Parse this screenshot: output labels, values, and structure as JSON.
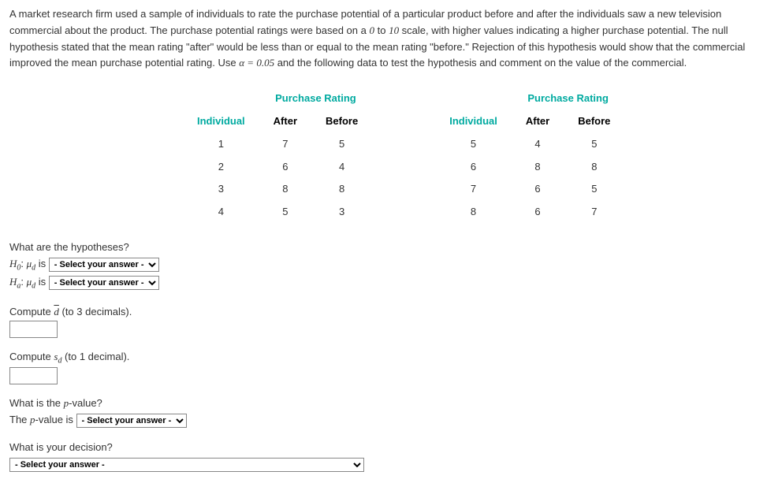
{
  "problem": {
    "p1_a": "A market research firm used a sample of individuals to rate the purchase potential of a particular product before and after the individuals saw a new television commercial about the product. The purchase potential ratings were based on a ",
    "scale_low": "0",
    "p1_b": " to ",
    "scale_high": "10",
    "p1_c": " scale, with higher values indicating a higher purchase potential. The null hypothesis stated that the mean rating \"after\" would be less than or equal to the mean rating \"before.\" Rejection of this hypothesis would show that the commercial improved the mean purchase potential rating. Use ",
    "alpha_sym": "α",
    "alpha_eq": " = ",
    "alpha_val": "0.05",
    "p1_d": " and the following data to test the hypothesis and comment on the value of the commercial."
  },
  "table": {
    "hdr_purchase": "Purchase Rating",
    "hdr_individual": "Individual",
    "hdr_after": "After",
    "hdr_before": "Before",
    "left": {
      "rows": [
        {
          "ind": "1",
          "after": "7",
          "before": "5"
        },
        {
          "ind": "2",
          "after": "6",
          "before": "4"
        },
        {
          "ind": "3",
          "after": "8",
          "before": "8"
        },
        {
          "ind": "4",
          "after": "5",
          "before": "3"
        }
      ]
    },
    "right": {
      "rows": [
        {
          "ind": "5",
          "after": "4",
          "before": "5"
        },
        {
          "ind": "6",
          "after": "8",
          "before": "8"
        },
        {
          "ind": "7",
          "after": "6",
          "before": "5"
        },
        {
          "ind": "8",
          "after": "6",
          "before": "7"
        }
      ]
    }
  },
  "q_hypotheses": "What are the hypotheses?",
  "h0_label_a": "H",
  "h0_label_b": "0",
  "h0_label_c": ": ",
  "mu": "μ",
  "mu_sub": "d",
  "is_txt": " is ",
  "ha_label_a": "H",
  "ha_label_b": "a",
  "ha_label_c": ": ",
  "select_placeholder": "- Select your answer -",
  "q_dbar_a": "Compute ",
  "q_dbar_sym": "d",
  "q_dbar_b": " (to 3 decimals).",
  "q_sd_a": "Compute ",
  "q_sd_sym": "s",
  "q_sd_sub": "d",
  "q_sd_b": " (to 1 decimal).",
  "q_pvalue_q": "What is the ",
  "p_sym": "p",
  "q_pvalue_q2": "-value?",
  "q_pvalue_a": "The ",
  "q_pvalue_b": "-value is ",
  "q_decision": "What is your decision?",
  "colors": {
    "teal": "#00aaa0"
  }
}
